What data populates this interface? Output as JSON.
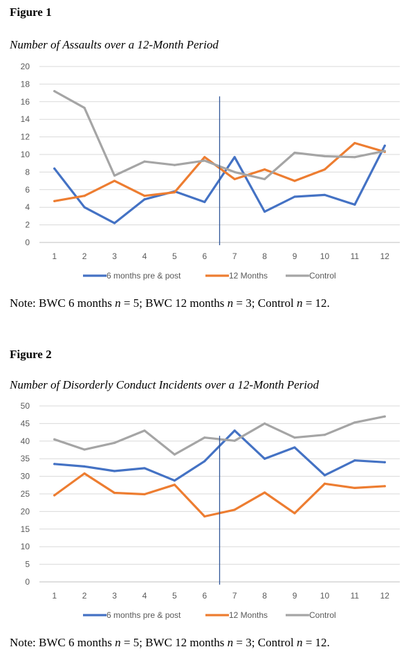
{
  "figures": [
    {
      "label": "Figure 1",
      "title": "Number of Assaults over a 12-Month Period",
      "note": {
        "prefix": "Note: BWC 6 months ",
        "n1": "n",
        "mid1": " = 5; BWC 12 months ",
        "n2": "n",
        "mid2": " = 3; Control ",
        "n3": "n",
        "suffix": " = 12."
      }
    },
    {
      "label": "Figure 2",
      "title": "Number of Disorderly Conduct Incidents over a 12-Month Period",
      "note": {
        "prefix": "Note: BWC 6 months ",
        "n1": "n",
        "mid1": " = 5; BWC 12 months ",
        "n2": "n",
        "mid2": " = 3; Control ",
        "n3": "n",
        "suffix": " = 12."
      }
    }
  ],
  "colors": {
    "six_months": "#4472C4",
    "twelve_months": "#ED7D31",
    "control": "#A5A5A5",
    "divider": "#2F5597",
    "grid": "#D9D9D9"
  },
  "chart_data": [
    {
      "type": "line",
      "title": "Number of Assaults over a 12-Month Period",
      "categories": [
        "1",
        "2",
        "3",
        "4",
        "5",
        "6",
        "7",
        "8",
        "9",
        "10",
        "11",
        "12"
      ],
      "ylim": [
        0,
        20
      ],
      "yticks": [
        "0",
        "2",
        "4",
        "6",
        "8",
        "10",
        "12",
        "14",
        "16",
        "18",
        "20"
      ],
      "grid": true,
      "legend": "bottom",
      "divider_between": [
        "6",
        "7"
      ],
      "series": [
        {
          "name": "6 months pre & post",
          "color": "#4472C4",
          "values": [
            8.4,
            4.0,
            2.2,
            4.9,
            5.8,
            4.6,
            9.7,
            3.5,
            5.2,
            5.4,
            4.3,
            11.0
          ]
        },
        {
          "name": "12 Months",
          "color": "#ED7D31",
          "values": [
            4.7,
            5.3,
            7.0,
            5.3,
            5.7,
            9.7,
            7.2,
            8.3,
            7.0,
            8.3,
            11.3,
            10.3
          ]
        },
        {
          "name": "Control",
          "color": "#A5A5A5",
          "values": [
            17.2,
            15.3,
            7.6,
            9.2,
            8.8,
            9.3,
            8.0,
            7.2,
            10.2,
            9.8,
            9.7,
            10.4
          ]
        }
      ]
    },
    {
      "type": "line",
      "title": "Number of Disorderly Conduct Incidents over a 12-Month Period",
      "categories": [
        "1",
        "2",
        "3",
        "4",
        "5",
        "6",
        "7",
        "8",
        "9",
        "10",
        "11",
        "12"
      ],
      "ylim": [
        0,
        50
      ],
      "yticks": [
        "0",
        "5",
        "10",
        "15",
        "20",
        "25",
        "30",
        "35",
        "40",
        "45",
        "50"
      ],
      "grid": true,
      "legend": "bottom",
      "divider_between": [
        "6",
        "7"
      ],
      "series": [
        {
          "name": "6 months pre & post",
          "color": "#4472C4",
          "values": [
            33.5,
            32.8,
            31.5,
            32.3,
            28.8,
            34.3,
            43.0,
            35.0,
            38.2,
            30.3,
            34.5,
            34.0
          ]
        },
        {
          "name": "12 Months",
          "color": "#ED7D31",
          "values": [
            24.6,
            30.8,
            25.3,
            24.9,
            27.6,
            18.6,
            20.5,
            25.4,
            19.5,
            27.9,
            26.7,
            27.2
          ]
        },
        {
          "name": "Control",
          "color": "#A5A5A5",
          "values": [
            40.5,
            37.6,
            39.5,
            43.0,
            36.2,
            41.0,
            40.1,
            45.0,
            41.0,
            41.8,
            45.3,
            47.0
          ]
        }
      ]
    }
  ]
}
